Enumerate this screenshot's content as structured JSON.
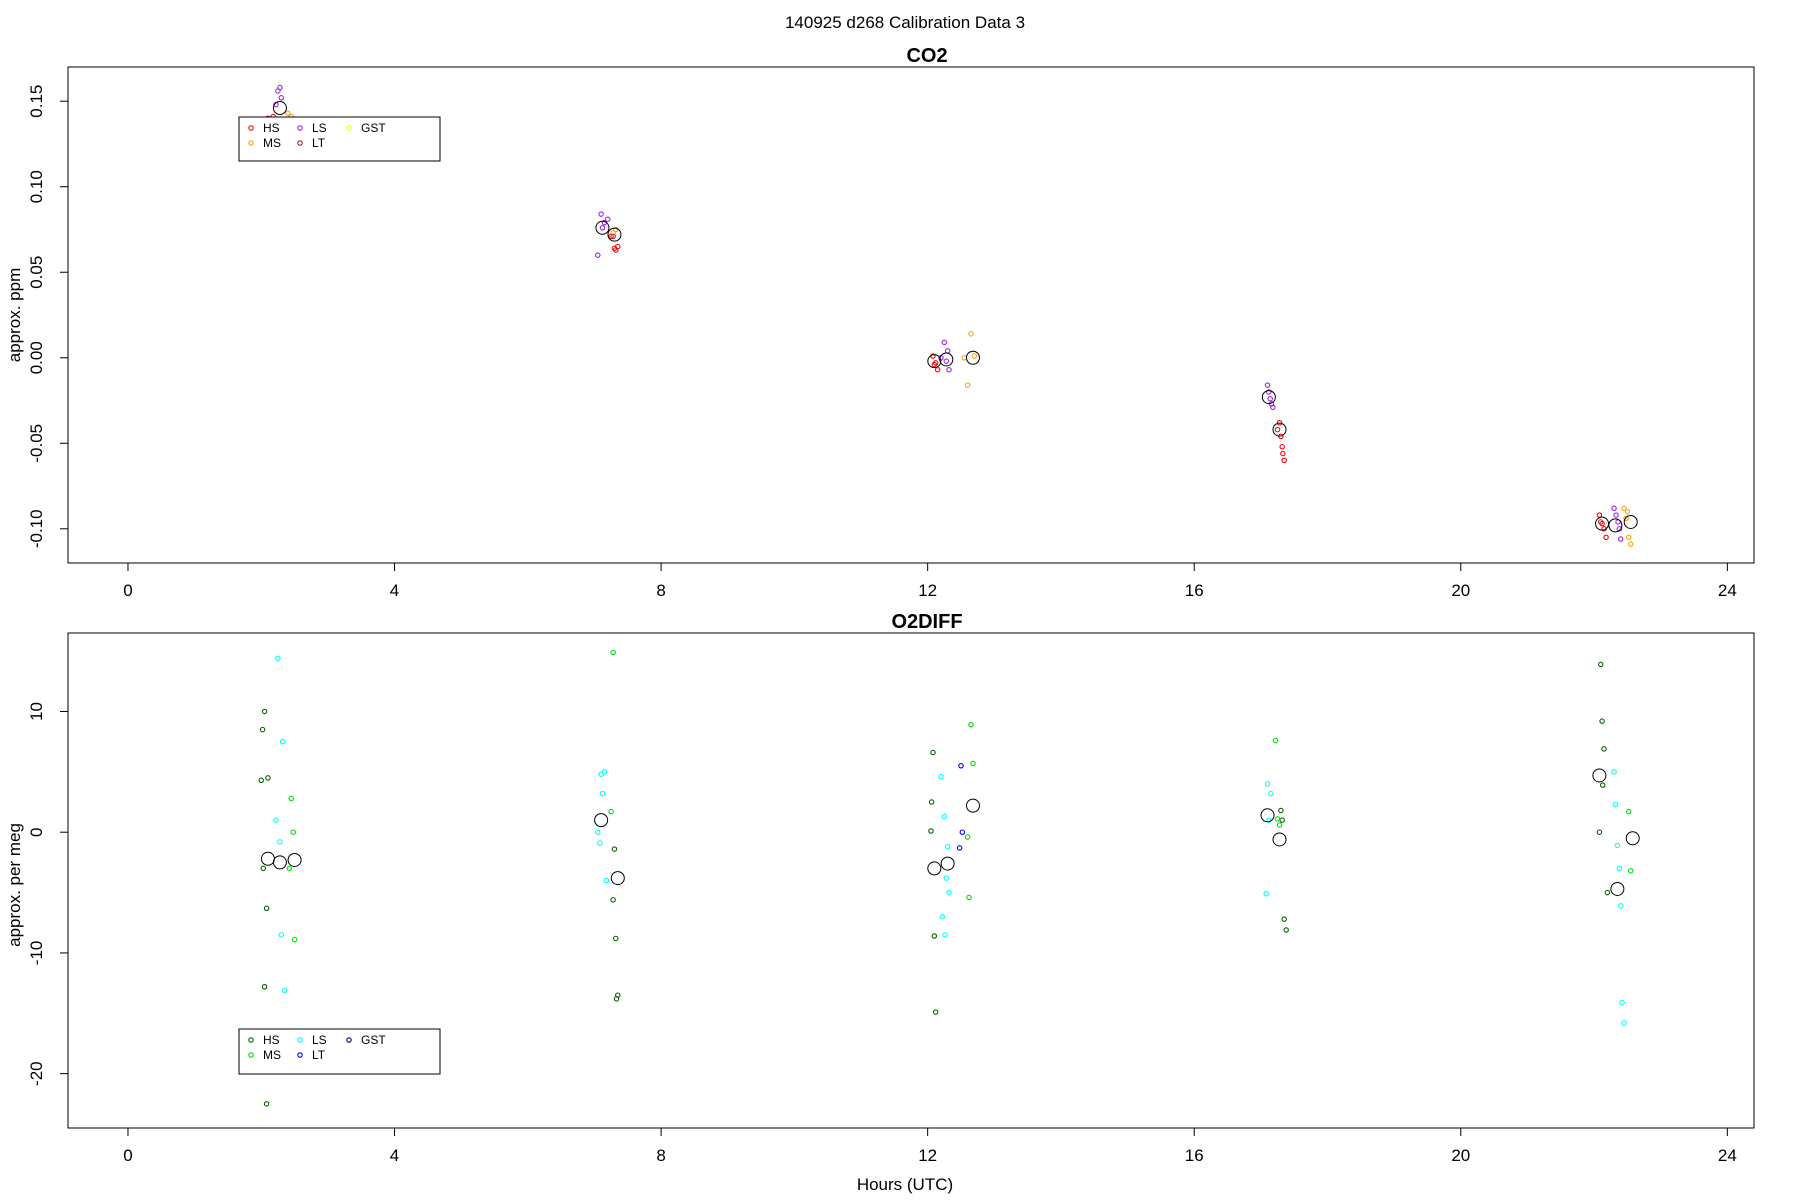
{
  "figure": {
    "title": "140925   d268   Calibration Data 3"
  },
  "chart_data": [
    {
      "type": "scatter",
      "title": "CO2",
      "xlabel": "",
      "ylabel": "approx. ppm",
      "xlim": [
        -0.9,
        24.4
      ],
      "ylim": [
        -0.12,
        0.17
      ],
      "xticks": [
        0,
        4,
        8,
        12,
        16,
        20,
        24
      ],
      "yticks": [
        -0.1,
        -0.05,
        0.0,
        0.05,
        0.1,
        0.15
      ],
      "ytick_labels": [
        "-0.10",
        "-0.05",
        "0.00",
        "0.05",
        "0.10",
        "0.15"
      ],
      "legend": {
        "placement": "upper-left",
        "columns": 3
      },
      "series": [
        {
          "name": "HS",
          "color": "#ff0000",
          "points": [
            [
              2.05,
              0.139
            ],
            [
              2.1,
              0.14
            ],
            [
              2.18,
              0.141
            ],
            [
              7.3,
              0.064
            ],
            [
              7.25,
              0.071
            ],
            [
              7.35,
              0.065
            ],
            [
              12.08,
              0.001
            ],
            [
              12.12,
              -0.003
            ],
            [
              12.15,
              -0.007
            ],
            [
              12.1,
              -0.004
            ],
            [
              17.28,
              -0.038
            ],
            [
              17.3,
              -0.046
            ],
            [
              17.32,
              -0.052
            ],
            [
              17.33,
              -0.056
            ],
            [
              17.35,
              -0.06
            ],
            [
              22.08,
              -0.092
            ],
            [
              22.12,
              -0.097
            ],
            [
              22.15,
              -0.1
            ],
            [
              22.18,
              -0.105
            ]
          ]
        },
        {
          "name": "MS",
          "color": "#ffa500",
          "points": [
            [
              2.45,
              0.141
            ],
            [
              2.4,
              0.143
            ],
            [
              7.32,
              0.075
            ],
            [
              7.28,
              0.073
            ],
            [
              12.6,
              -0.016
            ],
            [
              12.65,
              0.014
            ],
            [
              12.7,
              0.001
            ],
            [
              12.55,
              0.0
            ],
            [
              22.45,
              -0.088
            ],
            [
              22.5,
              -0.09
            ],
            [
              22.48,
              -0.094
            ],
            [
              22.52,
              -0.105
            ],
            [
              22.55,
              -0.109
            ]
          ]
        },
        {
          "name": "LS",
          "color": "#a020f0",
          "points": [
            [
              2.25,
              0.156
            ],
            [
              2.28,
              0.158
            ],
            [
              2.3,
              0.152
            ],
            [
              2.22,
              0.148
            ],
            [
              7.05,
              0.06
            ],
            [
              7.1,
              0.084
            ],
            [
              7.15,
              0.079
            ],
            [
              7.2,
              0.081
            ],
            [
              7.12,
              0.076
            ],
            [
              12.25,
              0.009
            ],
            [
              12.3,
              0.004
            ],
            [
              12.28,
              -0.002
            ],
            [
              12.32,
              -0.007
            ],
            [
              12.2,
              0.0
            ],
            [
              17.1,
              -0.016
            ],
            [
              17.12,
              -0.02
            ],
            [
              17.14,
              -0.024
            ],
            [
              17.16,
              -0.027
            ],
            [
              17.18,
              -0.029
            ],
            [
              22.3,
              -0.088
            ],
            [
              22.33,
              -0.092
            ],
            [
              22.36,
              -0.096
            ],
            [
              22.38,
              -0.1
            ],
            [
              22.4,
              -0.106
            ]
          ]
        },
        {
          "name": "LT",
          "color": "#b22222",
          "points": [
            [
              2.15,
              0.139
            ],
            [
              7.28,
              0.071
            ],
            [
              7.32,
              0.063
            ],
            [
              17.25,
              -0.042
            ],
            [
              22.1,
              -0.096
            ]
          ]
        },
        {
          "name": "GST",
          "color": "#ffff00",
          "points": []
        },
        {
          "name": "",
          "role": "mean",
          "color": "#000000",
          "points": [
            [
              2.28,
              0.146
            ],
            [
              7.12,
              0.076
            ],
            [
              7.3,
              0.072
            ],
            [
              12.1,
              -0.002
            ],
            [
              12.28,
              -0.001
            ],
            [
              12.68,
              0.0
            ],
            [
              17.12,
              -0.023
            ],
            [
              17.28,
              -0.042
            ],
            [
              22.12,
              -0.097
            ],
            [
              22.32,
              -0.098
            ],
            [
              22.55,
              -0.096
            ]
          ]
        }
      ]
    },
    {
      "type": "scatter",
      "title": "O2DIFF",
      "xlabel": "Hours (UTC)",
      "ylabel": "approx. per meg",
      "xlim": [
        -0.9,
        24.4
      ],
      "ylim": [
        -24.5,
        16.5
      ],
      "xticks": [
        0,
        4,
        8,
        12,
        16,
        20,
        24
      ],
      "yticks": [
        -20,
        -10,
        0,
        10
      ],
      "ytick_labels": [
        "-20",
        "-10",
        "0",
        "10"
      ],
      "legend": {
        "placement": "lower-left",
        "columns": 3
      },
      "series": [
        {
          "name": "HS",
          "color": "#006400",
          "points": [
            [
              2.05,
              10.0
            ],
            [
              2.02,
              8.5
            ],
            [
              2.0,
              4.3
            ],
            [
              2.1,
              4.5
            ],
            [
              2.03,
              -3.0
            ],
            [
              2.08,
              -6.3
            ],
            [
              2.05,
              -12.8
            ],
            [
              2.08,
              -22.5
            ],
            [
              7.3,
              -1.4
            ],
            [
              7.28,
              -5.6
            ],
            [
              7.32,
              -8.8
            ],
            [
              7.35,
              -13.5
            ],
            [
              7.33,
              -13.8
            ],
            [
              12.08,
              6.6
            ],
            [
              12.06,
              2.5
            ],
            [
              12.05,
              0.1
            ],
            [
              12.1,
              -8.6
            ],
            [
              12.12,
              -14.9
            ],
            [
              17.3,
              1.8
            ],
            [
              17.32,
              1.0
            ],
            [
              17.35,
              -7.2
            ],
            [
              17.38,
              -8.1
            ],
            [
              22.1,
              13.9
            ],
            [
              22.12,
              9.2
            ],
            [
              22.15,
              6.9
            ],
            [
              22.13,
              3.9
            ],
            [
              22.08,
              0.0
            ],
            [
              22.2,
              -5.0
            ]
          ]
        },
        {
          "name": "MS",
          "color": "#00dd00",
          "points": [
            [
              2.45,
              2.8
            ],
            [
              2.48,
              0.0
            ],
            [
              2.42,
              -3.0
            ],
            [
              2.5,
              -8.9
            ],
            [
              7.28,
              14.9
            ],
            [
              7.25,
              1.7
            ],
            [
              12.65,
              8.9
            ],
            [
              12.68,
              5.7
            ],
            [
              12.6,
              -0.4
            ],
            [
              12.62,
              -5.4
            ],
            [
              17.22,
              7.6
            ],
            [
              17.25,
              1.1
            ],
            [
              17.28,
              0.6
            ],
            [
              22.52,
              1.7
            ],
            [
              22.55,
              -3.2
            ]
          ]
        },
        {
          "name": "LS",
          "color": "#00ffff",
          "points": [
            [
              2.25,
              14.4
            ],
            [
              2.32,
              7.5
            ],
            [
              2.22,
              1.0
            ],
            [
              2.28,
              -0.8
            ],
            [
              2.3,
              -8.5
            ],
            [
              2.35,
              -13.1
            ],
            [
              7.1,
              4.8
            ],
            [
              7.15,
              5.0
            ],
            [
              7.12,
              3.2
            ],
            [
              7.05,
              0.0
            ],
            [
              7.08,
              -0.9
            ],
            [
              7.18,
              -4.0
            ],
            [
              12.2,
              4.6
            ],
            [
              12.25,
              1.3
            ],
            [
              12.3,
              -1.2
            ],
            [
              12.28,
              -3.8
            ],
            [
              12.32,
              -5.0
            ],
            [
              12.22,
              -7.0
            ],
            [
              12.26,
              -8.5
            ],
            [
              17.1,
              4.0
            ],
            [
              17.15,
              3.2
            ],
            [
              17.12,
              1.0
            ],
            [
              17.08,
              -5.1
            ],
            [
              22.3,
              5.0
            ],
            [
              22.32,
              2.3
            ],
            [
              22.35,
              -1.1
            ],
            [
              22.38,
              -3.0
            ],
            [
              22.4,
              -6.1
            ],
            [
              22.42,
              -14.1
            ],
            [
              22.45,
              -15.8
            ]
          ]
        },
        {
          "name": "LT",
          "color": "#0000ff",
          "points": [
            [
              12.5,
              5.5
            ],
            [
              12.52,
              0.0
            ],
            [
              12.48,
              -1.3
            ]
          ]
        },
        {
          "name": "GST",
          "color": "#00008b",
          "points": []
        },
        {
          "name": "",
          "role": "mean",
          "color": "#000000",
          "points": [
            [
              2.1,
              -2.2
            ],
            [
              2.28,
              -2.5
            ],
            [
              2.5,
              -2.3
            ],
            [
              7.1,
              1.0
            ],
            [
              7.35,
              -3.8
            ],
            [
              12.1,
              -3.0
            ],
            [
              12.3,
              -2.6
            ],
            [
              12.68,
              2.2
            ],
            [
              17.1,
              1.4
            ],
            [
              17.28,
              -0.6
            ],
            [
              22.08,
              4.7
            ],
            [
              22.35,
              -4.7
            ],
            [
              22.58,
              -0.5
            ]
          ]
        }
      ]
    }
  ]
}
